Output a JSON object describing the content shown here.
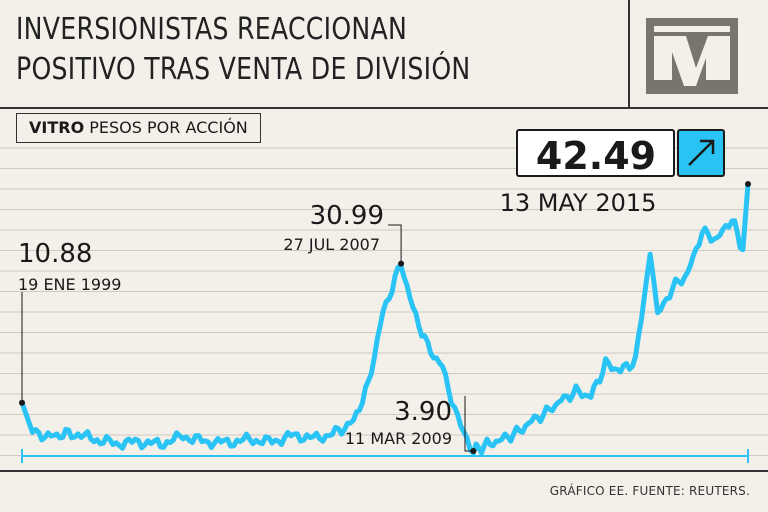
{
  "headline": {
    "line1": "INVERSIONISTAS REACCIONAN",
    "line2": "POSITIVO TRAS VENTA DE DIVISIÓN"
  },
  "series_tag": {
    "name": "VITRO",
    "unit": "PESOS POR ACCIÓN"
  },
  "source": "GRÁFICO EE. FUENTE: REUTERS.",
  "logo_icon": "ee-logo",
  "colors": {
    "line": "#29c4f5",
    "background": "#f3efe9",
    "text": "#1a1a1a",
    "logo": "#7a746e"
  },
  "chart_data": {
    "type": "line",
    "title": "",
    "xlabel": "",
    "ylabel": "",
    "x_range": [
      "1999-01-19",
      "2015-05-13"
    ],
    "ylim": [
      0,
      50
    ],
    "grid": true,
    "series": [
      {
        "name": "VITRO",
        "x": [
          "1999-01-19",
          "1999-04-15",
          "1999-09-15",
          "2000-03-01",
          "2000-09-01",
          "2001-03-01",
          "2001-09-01",
          "2002-03-01",
          "2002-09-01",
          "2003-03-01",
          "2003-09-01",
          "2004-03-01",
          "2004-09-01",
          "2005-03-01",
          "2005-09-01",
          "2006-03-01",
          "2006-07-01",
          "2006-11-01",
          "2007-03-01",
          "2007-07-27",
          "2007-11-01",
          "2008-03-01",
          "2008-07-01",
          "2008-11-01",
          "2009-03-11",
          "2009-07-01",
          "2009-11-01",
          "2010-03-01",
          "2010-07-01",
          "2010-11-01",
          "2011-03-01",
          "2011-07-01",
          "2011-11-01",
          "2012-03-01",
          "2012-07-01",
          "2012-11-01",
          "2013-03-01",
          "2013-05-01",
          "2013-09-01",
          "2014-01-01",
          "2014-05-01",
          "2014-09-01",
          "2015-01-01",
          "2015-04-01",
          "2015-05-13"
        ],
        "y": [
          10.88,
          6.6,
          6.0,
          6.5,
          5.6,
          5.0,
          5.2,
          4.9,
          6.0,
          5.3,
          5.1,
          5.6,
          5.2,
          6.2,
          5.7,
          6.7,
          8.2,
          13.5,
          24.0,
          30.99,
          24.5,
          19.0,
          16.0,
          8.5,
          3.9,
          4.8,
          5.6,
          6.5,
          8.2,
          9.5,
          11.2,
          12.5,
          11.8,
          16.5,
          15.5,
          17.0,
          32.5,
          23.5,
          27.5,
          29.5,
          35.5,
          34.5,
          37.5,
          33.0,
          42.49
        ]
      }
    ],
    "annotations": [
      {
        "value": "10.88",
        "date": "19 ENE 1999"
      },
      {
        "value": "30.99",
        "date": "27 JUL 2007"
      },
      {
        "value": "3.90",
        "date": "11 MAR 2009"
      },
      {
        "value": "42.49",
        "date": "13 MAY 2015",
        "icon": "arrow-up-right-icon"
      }
    ]
  }
}
